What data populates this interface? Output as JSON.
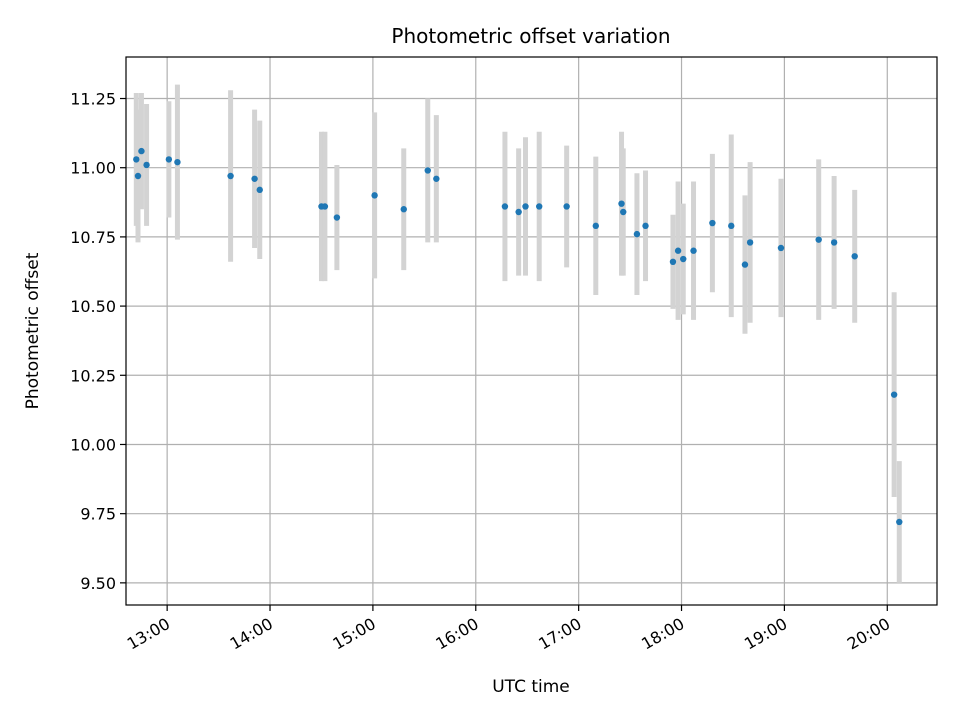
{
  "chart_data": {
    "type": "scatter",
    "title": "Photometric offset variation",
    "xlabel": "UTC time",
    "ylabel": "Photometric offset",
    "xlim": [
      "12:36",
      "20:29"
    ],
    "ylim": [
      9.42,
      11.4
    ],
    "x_ticks": [
      "13:00",
      "14:00",
      "15:00",
      "16:00",
      "17:00",
      "18:00",
      "19:00",
      "20:00"
    ],
    "y_ticks": [
      9.5,
      9.75,
      10.0,
      10.25,
      10.5,
      10.75,
      11.0,
      11.25
    ],
    "y_tick_labels": [
      "9.50",
      "9.75",
      "10.00",
      "10.25",
      "10.50",
      "10.75",
      "11.00",
      "11.25"
    ],
    "grid": true,
    "x_tick_rotation_deg": 30,
    "point_color": "#1f77b4",
    "errorbar_color": "#d3d3d3",
    "series": [
      {
        "points": [
          {
            "x": "12:42",
            "y": 11.03,
            "err": 0.24
          },
          {
            "x": "12:43",
            "y": 10.97,
            "err": 0.24
          },
          {
            "x": "12:45",
            "y": 11.06,
            "err": 0.21
          },
          {
            "x": "12:48",
            "y": 11.01,
            "err": 0.22
          },
          {
            "x": "13:01",
            "y": 11.03,
            "err": 0.21
          },
          {
            "x": "13:06",
            "y": 11.02,
            "err": 0.28
          },
          {
            "x": "13:37",
            "y": 10.97,
            "err": 0.31
          },
          {
            "x": "13:51",
            "y": 10.96,
            "err": 0.25
          },
          {
            "x": "13:54",
            "y": 10.92,
            "err": 0.25
          },
          {
            "x": "14:30",
            "y": 10.86,
            "err": 0.27
          },
          {
            "x": "14:32",
            "y": 10.86,
            "err": 0.27
          },
          {
            "x": "14:39",
            "y": 10.82,
            "err": 0.19
          },
          {
            "x": "15:01",
            "y": 10.9,
            "err": 0.3
          },
          {
            "x": "15:18",
            "y": 10.85,
            "err": 0.22
          },
          {
            "x": "15:32",
            "y": 10.99,
            "err": 0.26
          },
          {
            "x": "15:37",
            "y": 10.96,
            "err": 0.23
          },
          {
            "x": "16:17",
            "y": 10.86,
            "err": 0.27
          },
          {
            "x": "16:25",
            "y": 10.84,
            "err": 0.23
          },
          {
            "x": "16:29",
            "y": 10.86,
            "err": 0.25
          },
          {
            "x": "16:37",
            "y": 10.86,
            "err": 0.27
          },
          {
            "x": "16:53",
            "y": 10.86,
            "err": 0.22
          },
          {
            "x": "17:10",
            "y": 10.79,
            "err": 0.25
          },
          {
            "x": "17:25",
            "y": 10.87,
            "err": 0.26
          },
          {
            "x": "17:26",
            "y": 10.84,
            "err": 0.23
          },
          {
            "x": "17:34",
            "y": 10.76,
            "err": 0.22
          },
          {
            "x": "17:39",
            "y": 10.79,
            "err": 0.2
          },
          {
            "x": "17:55",
            "y": 10.66,
            "err": 0.17
          },
          {
            "x": "17:58",
            "y": 10.7,
            "err": 0.25
          },
          {
            "x": "18:01",
            "y": 10.67,
            "err": 0.2
          },
          {
            "x": "18:07",
            "y": 10.7,
            "err": 0.25
          },
          {
            "x": "18:18",
            "y": 10.8,
            "err": 0.25
          },
          {
            "x": "18:29",
            "y": 10.79,
            "err": 0.33
          },
          {
            "x": "18:37",
            "y": 10.65,
            "err": 0.25
          },
          {
            "x": "18:40",
            "y": 10.73,
            "err": 0.29
          },
          {
            "x": "18:58",
            "y": 10.71,
            "err": 0.25
          },
          {
            "x": "19:20",
            "y": 10.74,
            "err": 0.29
          },
          {
            "x": "19:29",
            "y": 10.73,
            "err": 0.24
          },
          {
            "x": "19:41",
            "y": 10.68,
            "err": 0.24
          },
          {
            "x": "20:04",
            "y": 10.18,
            "err": 0.37
          },
          {
            "x": "20:07",
            "y": 9.72,
            "err": 0.22
          }
        ]
      }
    ]
  }
}
